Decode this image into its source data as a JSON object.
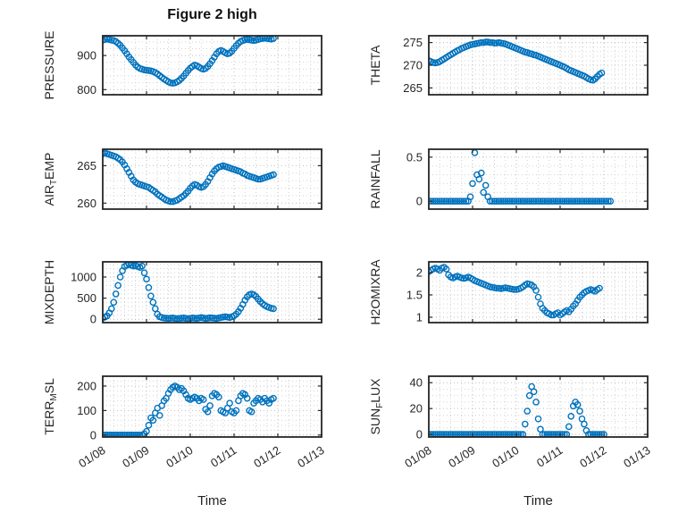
{
  "figure": {
    "title": "Figure 2 high",
    "colors": {
      "accent": "#0072BD",
      "axis": "#262626",
      "grid_major": "#bdbdbd",
      "grid_minor": "#d2d2d2"
    }
  },
  "x_axis": {
    "label": "Time",
    "tick_labels": [
      "01/08",
      "01/09",
      "01/10",
      "01/11",
      "01/12",
      "01/13"
    ],
    "tick_values": [
      0,
      1,
      2,
      3,
      4,
      5
    ],
    "lim": [
      0,
      5
    ],
    "minor_step": 0.25
  },
  "chart_data": [
    {
      "type": "scatter",
      "name": "PRESSURE",
      "ylabel": [
        {
          "t": "PRESSURE",
          "sub": false
        }
      ],
      "ylim": [
        785,
        958
      ],
      "yticks": [
        800,
        900
      ],
      "yminor": 20,
      "series": {
        "x0": 0,
        "dx": 0.05,
        "y": [
          945,
          947,
          948,
          947,
          945,
          944,
          941,
          936,
          930,
          922,
          914,
          905,
          896,
          888,
          880,
          872,
          866,
          862,
          860,
          858,
          857,
          856,
          855,
          853,
          850,
          846,
          841,
          836,
          831,
          827,
          823,
          820,
          819,
          820,
          823,
          827,
          833,
          840,
          848,
          856,
          863,
          868,
          872,
          870,
          866,
          862,
          860,
          862,
          868,
          876,
          885,
          895,
          905,
          912,
          915,
          912,
          908,
          905,
          907,
          913,
          921,
          929,
          936,
          941,
          944,
          946,
          947,
          946,
          945,
          944,
          945,
          947,
          949,
          950,
          951,
          950,
          949,
          948,
          950
        ]
      }
    },
    {
      "type": "scatter",
      "name": "THETA",
      "ylabel": [
        {
          "t": "THETA",
          "sub": false
        }
      ],
      "ylim": [
        263.5,
        276.5
      ],
      "yticks": [
        265,
        270,
        275
      ],
      "yminor": 1,
      "series": {
        "x0": 0,
        "dx": 0.05,
        "y": [
          271.0,
          270.8,
          270.6,
          270.5,
          270.6,
          270.8,
          271.1,
          271.4,
          271.7,
          272.0,
          272.3,
          272.6,
          272.9,
          273.2,
          273.4,
          273.7,
          273.9,
          274.1,
          274.3,
          274.5,
          274.6,
          274.7,
          274.8,
          274.9,
          275.0,
          275.0,
          275.1,
          275.1,
          275.0,
          275.0,
          274.9,
          274.9,
          275.0,
          274.9,
          274.8,
          274.7,
          274.5,
          274.3,
          274.1,
          273.9,
          273.7,
          273.5,
          273.3,
          273.1,
          272.9,
          272.8,
          272.6,
          272.5,
          272.3,
          272.2,
          272.0,
          271.8,
          271.6,
          271.4,
          271.2,
          271.0,
          270.8,
          270.6,
          270.4,
          270.2,
          270.0,
          269.8,
          269.6,
          269.3,
          269.0,
          268.8,
          268.6,
          268.4,
          268.2,
          268.0,
          267.8,
          267.6,
          267.3,
          267.0,
          266.8,
          266.7,
          267.0,
          267.5,
          268.0,
          268.3
        ]
      }
    },
    {
      "type": "scatter",
      "name": "AIR_TEMP",
      "ylabel": [
        {
          "t": "AIR",
          "sub": false
        },
        {
          "t": "T",
          "sub": true
        },
        {
          "t": "EMP",
          "sub": false
        }
      ],
      "ylim": [
        259.2,
        267.2
      ],
      "yticks": [
        260,
        265
      ],
      "yminor": 1,
      "series": {
        "x0": 0,
        "dx": 0.05,
        "y": [
          266.6,
          266.7,
          266.6,
          266.5,
          266.4,
          266.3,
          266.2,
          266.0,
          265.8,
          265.5,
          265.1,
          264.6,
          264.1,
          263.6,
          263.1,
          262.8,
          262.6,
          262.5,
          262.4,
          262.3,
          262.2,
          262.1,
          261.9,
          261.7,
          261.5,
          261.2,
          261.0,
          260.8,
          260.6,
          260.4,
          260.3,
          260.2,
          260.2,
          260.3,
          260.4,
          260.6,
          260.8,
          261.0,
          261.3,
          261.6,
          262.0,
          262.3,
          262.5,
          262.4,
          262.2,
          262.1,
          262.2,
          262.5,
          262.9,
          263.4,
          263.9,
          264.3,
          264.6,
          264.8,
          264.9,
          265.0,
          264.9,
          264.8,
          264.7,
          264.6,
          264.5,
          264.4,
          264.3,
          264.2,
          264.0,
          263.9,
          263.7,
          263.6,
          263.5,
          263.4,
          263.3,
          263.2,
          263.2,
          263.3,
          263.4,
          263.5,
          263.6,
          263.7,
          263.8
        ]
      }
    },
    {
      "type": "scatter",
      "name": "RAINFALL",
      "ylabel": [
        {
          "t": "RAINFALL",
          "sub": false
        }
      ],
      "ylim": [
        -0.09,
        0.59
      ],
      "yticks": [
        0,
        0.5
      ],
      "yminor": 0.1,
      "series": {
        "x0": 0,
        "dx": 0.05,
        "y": [
          0,
          0,
          0,
          0,
          0,
          0,
          0,
          0,
          0,
          0,
          0,
          0,
          0,
          0,
          0,
          0,
          0,
          0,
          0,
          0.05,
          0.2,
          0.55,
          0.3,
          0.25,
          0.32,
          0.1,
          0.18,
          0.05,
          0,
          0,
          0,
          0,
          0,
          0,
          0,
          0,
          0,
          0,
          0,
          0,
          0,
          0,
          0,
          0,
          0,
          0,
          0,
          0,
          0,
          0,
          0,
          0,
          0,
          0,
          0,
          0,
          0,
          0,
          0,
          0,
          0,
          0,
          0,
          0,
          0,
          0,
          0,
          0,
          0,
          0,
          0,
          0,
          0,
          0,
          0,
          0,
          0,
          0,
          0,
          0,
          0,
          0,
          0,
          0
        ]
      }
    },
    {
      "type": "scatter",
      "name": "MIXDEPTH",
      "ylabel": [
        {
          "t": "MIXDEPTH",
          "sub": false
        }
      ],
      "ylim": [
        -80,
        1360
      ],
      "yticks": [
        0,
        500,
        1000
      ],
      "yminor": 100,
      "series": {
        "x0": 0,
        "dx": 0.05,
        "y": [
          30,
          50,
          80,
          150,
          250,
          400,
          600,
          800,
          1000,
          1150,
          1250,
          1280,
          1300,
          1280,
          1260,
          1270,
          1250,
          1230,
          1260,
          1100,
          950,
          750,
          550,
          400,
          250,
          120,
          60,
          40,
          30,
          25,
          20,
          25,
          30,
          20,
          15,
          20,
          25,
          30,
          20,
          15,
          20,
          30,
          25,
          20,
          30,
          40,
          30,
          20,
          25,
          35,
          30,
          25,
          20,
          30,
          40,
          50,
          60,
          50,
          40,
          60,
          80,
          120,
          180,
          260,
          350,
          450,
          530,
          580,
          600,
          580,
          540,
          480,
          420,
          370,
          330,
          300,
          280,
          260,
          250
        ]
      }
    },
    {
      "type": "scatter",
      "name": "H2OMIXRA",
      "ylabel": [
        {
          "t": "H2OMIXRA",
          "sub": false
        }
      ],
      "ylim": [
        0.88,
        2.24
      ],
      "yticks": [
        1,
        1.5,
        2
      ],
      "yminor": 0.1,
      "series": {
        "x0": 0,
        "dx": 0.05,
        "y": [
          2.02,
          2.05,
          2.08,
          2.1,
          2.08,
          2.05,
          2.1,
          2.12,
          2.08,
          1.95,
          1.9,
          1.88,
          1.9,
          1.92,
          1.9,
          1.88,
          1.87,
          1.88,
          1.9,
          1.88,
          1.85,
          1.82,
          1.8,
          1.78,
          1.76,
          1.74,
          1.72,
          1.7,
          1.68,
          1.67,
          1.66,
          1.65,
          1.65,
          1.64,
          1.65,
          1.66,
          1.65,
          1.64,
          1.63,
          1.62,
          1.62,
          1.63,
          1.65,
          1.68,
          1.72,
          1.75,
          1.74,
          1.72,
          1.68,
          1.6,
          1.45,
          1.3,
          1.2,
          1.15,
          1.1,
          1.08,
          1.05,
          1.05,
          1.08,
          1.1,
          1.05,
          1.08,
          1.12,
          1.15,
          1.12,
          1.18,
          1.25,
          1.3,
          1.38,
          1.45,
          1.5,
          1.55,
          1.58,
          1.6,
          1.62,
          1.6,
          1.58,
          1.62,
          1.65
        ]
      }
    },
    {
      "type": "scatter",
      "name": "TERR_MSL",
      "ylabel": [
        {
          "t": "TERR",
          "sub": false
        },
        {
          "t": "M",
          "sub": true
        },
        {
          "t": "SL",
          "sub": false
        }
      ],
      "ylim": [
        -8,
        240
      ],
      "yticks": [
        0,
        100,
        200
      ],
      "yminor": 20,
      "series": {
        "x0": 0,
        "dx": 0.05,
        "y": [
          0,
          0,
          0,
          0,
          0,
          0,
          0,
          0,
          0,
          0,
          0,
          0,
          0,
          0,
          0,
          0,
          0,
          0,
          0,
          5,
          15,
          40,
          70,
          60,
          90,
          110,
          80,
          120,
          140,
          150,
          170,
          185,
          195,
          200,
          195,
          185,
          190,
          180,
          165,
          150,
          145,
          150,
          155,
          150,
          140,
          150,
          145,
          105,
          95,
          120,
          160,
          170,
          165,
          155,
          100,
          95,
          90,
          110,
          130,
          95,
          90,
          100,
          140,
          160,
          170,
          165,
          150,
          100,
          95,
          130,
          140,
          150,
          145,
          135,
          150,
          140,
          130,
          145,
          150
        ]
      }
    },
    {
      "type": "scatter",
      "name": "SUN_FLUX",
      "ylabel": [
        {
          "t": "SUN",
          "sub": false
        },
        {
          "t": "F",
          "sub": true
        },
        {
          "t": "LUX",
          "sub": false
        }
      ],
      "ylim": [
        -2,
        45
      ],
      "yticks": [
        0,
        20,
        40
      ],
      "yminor": 5,
      "series": {
        "x0": 0,
        "dx": 0.05,
        "y": [
          0,
          0,
          0,
          0,
          0,
          0,
          0,
          0,
          0,
          0,
          0,
          0,
          0,
          0,
          0,
          0,
          0,
          0,
          0,
          0,
          0,
          0,
          0,
          0,
          0,
          0,
          0,
          0,
          0,
          0,
          0,
          0,
          0,
          0,
          0,
          0,
          0,
          0,
          0,
          0,
          0,
          0,
          0,
          0,
          8,
          18,
          30,
          37,
          33,
          25,
          12,
          4,
          0,
          0,
          0,
          0,
          0,
          0,
          0,
          0,
          0,
          0,
          0,
          0,
          6,
          14,
          22,
          25,
          23,
          18,
          12,
          8,
          3,
          0,
          0,
          0,
          0,
          0,
          0,
          0,
          0
        ]
      }
    }
  ]
}
